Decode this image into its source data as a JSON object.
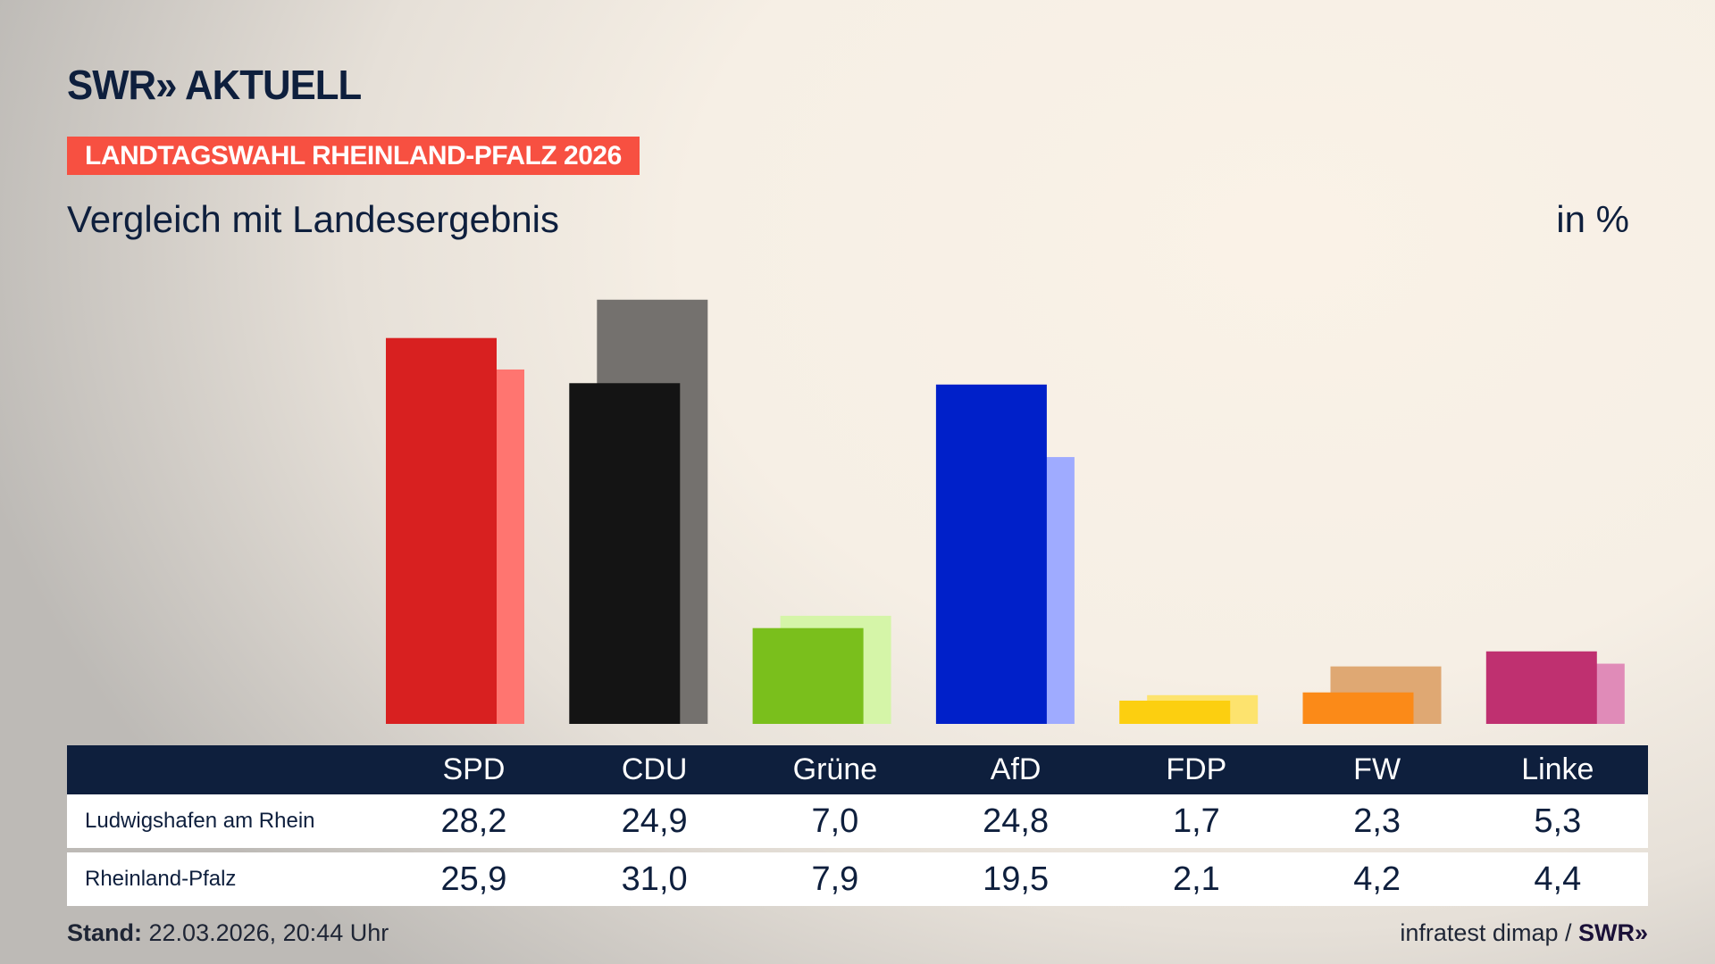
{
  "header": {
    "logo": "SWR» AKTUELL",
    "banner": "LANDTAGSWAHL RHEINLAND-PFALZ 2026",
    "subtitle": "Vergleich mit Landesergebnis",
    "unit": "in %"
  },
  "chart_data": {
    "type": "bar",
    "categories": [
      "SPD",
      "CDU",
      "Grüne",
      "AfD",
      "FDP",
      "FW",
      "Linke"
    ],
    "series": [
      {
        "name": "Ludwigshafen am Rhein",
        "values": [
          28.2,
          24.9,
          7.0,
          24.8,
          1.7,
          2.3,
          5.3
        ],
        "colors": [
          "#d82020",
          "#141414",
          "#7abf1c",
          "#0020c9",
          "#fccf10",
          "#fb8a18",
          "#bf3070"
        ]
      },
      {
        "name": "Rheinland-Pfalz",
        "values": [
          25.9,
          31.0,
          7.9,
          19.5,
          2.1,
          4.2,
          4.4
        ],
        "colors": [
          "#ff7570",
          "#74716e",
          "#d5f5a8",
          "#9fabff",
          "#fde36e",
          "#dfa873",
          "#e08bb8"
        ]
      }
    ],
    "value_labels": {
      "Ludwigshafen am Rhein": [
        "28,2",
        "24,9",
        "7,0",
        "24,8",
        "1,7",
        "2,3",
        "5,3"
      ],
      "Rheinland-Pfalz": [
        "25,9",
        "31,0",
        "7,9",
        "19,5",
        "2,1",
        "4,2",
        "4,4"
      ]
    },
    "ylim": [
      0,
      31
    ],
    "grid": false
  },
  "footer": {
    "stand_label": "Stand:",
    "stand_value": "22.03.2026, 20:44 Uhr",
    "source": "infratest dimap / ",
    "source_logo": "SWR»"
  }
}
